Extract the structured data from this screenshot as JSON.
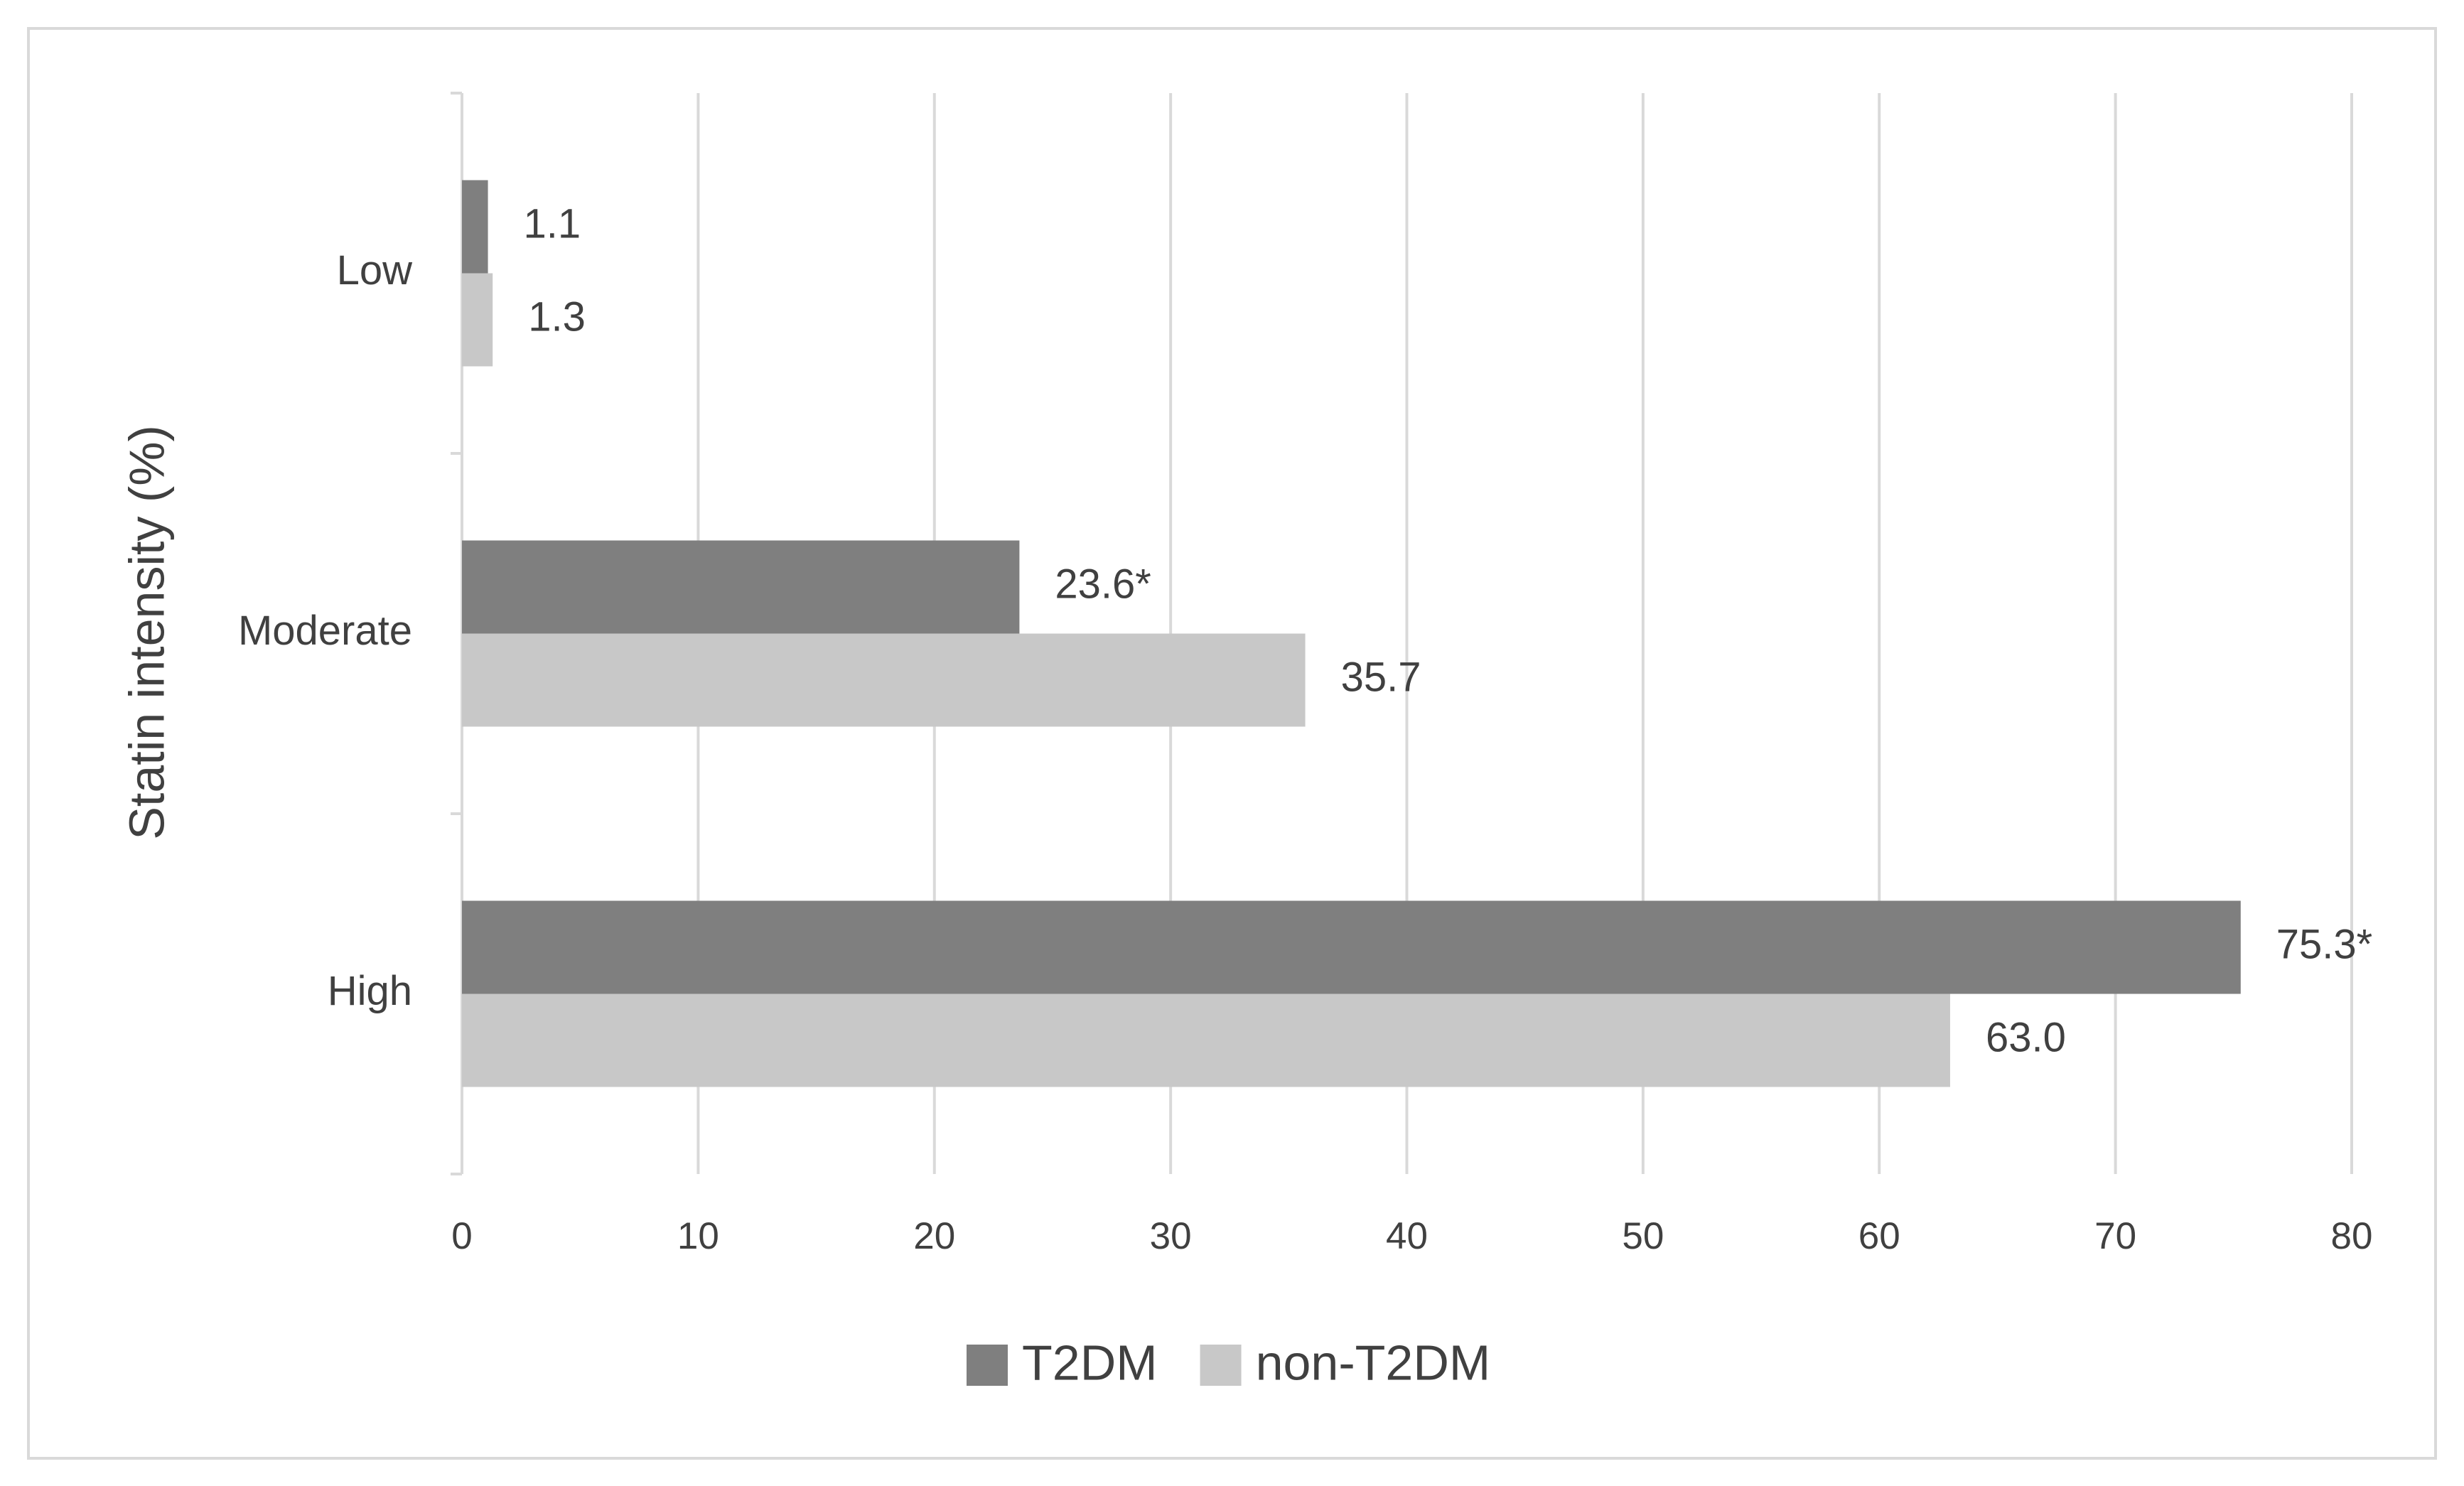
{
  "chart_data": {
    "type": "hbar",
    "y_label": "Statin intensity (%)",
    "categories": [
      "Low",
      "Moderate",
      "High"
    ],
    "series": [
      {
        "name": "T2DM",
        "color": "#7f7f7f",
        "values": [
          1.1,
          23.6,
          75.3
        ],
        "value_labels": [
          "1.1",
          "23.6*",
          "75.3*"
        ]
      },
      {
        "name": "non-T2DM",
        "color": "#c8c8c8",
        "values": [
          1.3,
          35.7,
          63.0
        ],
        "value_labels": [
          "1.3",
          "35.7",
          "63.0"
        ]
      }
    ],
    "xlim": [
      0,
      80
    ],
    "xticks": [
      0,
      10,
      20,
      30,
      40,
      50,
      60,
      70,
      80
    ],
    "grid": true,
    "legend": "bottom"
  }
}
